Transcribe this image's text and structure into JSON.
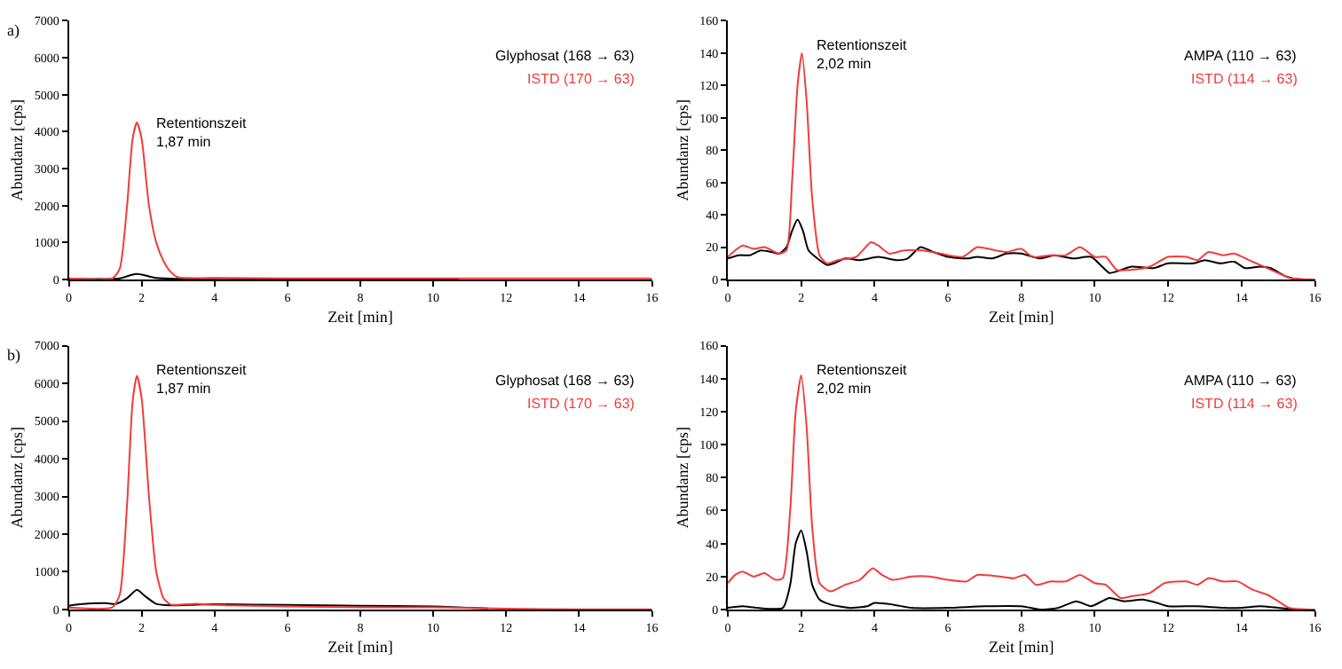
{
  "chart_data": [
    {
      "type": "line",
      "xlabel": "Zeit [min]",
      "ylabel": "Abundanz [cps]",
      "xlim": [
        0,
        16
      ],
      "xticks": [
        0,
        2,
        4,
        6,
        8,
        10,
        12,
        14,
        16
      ],
      "ylim": [
        0,
        7000
      ],
      "yticks": [
        0,
        1000,
        2000,
        3000,
        4000,
        5000,
        6000,
        7000
      ],
      "legend": "top right",
      "marker": "none",
      "annotations": [
        "Retentionszeit\n1,87 min",
        "a)"
      ],
      "series": [
        {
          "name": "Glyphosat (168 → 63)",
          "color": "#000000",
          "x": [
            0,
            1.4,
            1.7,
            1.87,
            2.1,
            2.4,
            3,
            4,
            6,
            8,
            10,
            10.7
          ],
          "values": [
            20,
            30,
            120,
            150,
            110,
            40,
            20,
            30,
            15,
            15,
            15,
            15
          ]
        },
        {
          "name": "ISTD (170 → 63)",
          "color": "#f03c3c",
          "x": [
            0,
            1.2,
            1.4,
            1.6,
            1.75,
            1.87,
            2.0,
            2.2,
            2.4,
            2.6,
            2.8,
            3.0,
            4,
            6,
            8,
            10,
            12,
            14,
            16
          ],
          "values": [
            30,
            30,
            300,
            2000,
            3800,
            4250,
            3800,
            2000,
            1000,
            500,
            200,
            60,
            40,
            30,
            30,
            30,
            30,
            30,
            30
          ]
        }
      ]
    },
    {
      "type": "line",
      "xlabel": "Zeit [min]",
      "ylabel": "Abundanz [cps]",
      "xlim": [
        0,
        16
      ],
      "xticks": [
        0,
        2,
        4,
        6,
        8,
        10,
        12,
        14,
        16
      ],
      "ylim": [
        0,
        160
      ],
      "yticks": [
        0,
        20,
        40,
        60,
        80,
        100,
        120,
        140,
        160
      ],
      "legend": "top right",
      "marker": "none",
      "annotations": [
        "Retentionszeit\n2,02 min"
      ],
      "series": [
        {
          "name": "AMPA (110 → 63)",
          "color": "#000000",
          "x": [
            0,
            0.3,
            0.6,
            0.9,
            1.2,
            1.4,
            1.6,
            1.75,
            1.9,
            2.05,
            2.2,
            2.5,
            2.7,
            2.9,
            3.2,
            3.6,
            4.1,
            4.6,
            4.9,
            5.25,
            5.6,
            6,
            6.5,
            6.8,
            7.2,
            7.6,
            8,
            8.5,
            8.9,
            9.4,
            9.9,
            10.2,
            10.4,
            10.6,
            11,
            11.6,
            12,
            12.7,
            13,
            13.4,
            13.8,
            14.1,
            14.5,
            14.8,
            15.2,
            15.6,
            16
          ],
          "values": [
            13,
            15,
            15,
            18,
            17,
            16,
            20,
            30,
            37,
            30,
            18,
            12,
            9,
            10,
            13,
            12,
            14,
            12,
            13,
            20,
            17,
            14,
            13,
            14,
            13,
            16,
            16,
            13,
            15,
            13,
            14,
            8,
            4,
            5,
            8,
            7,
            10,
            10,
            12,
            10,
            11,
            7,
            8,
            7,
            2,
            0,
            0
          ]
        },
        {
          "name": "ISTD (114 → 63)",
          "color": "#f03c3c",
          "x": [
            0,
            0.2,
            0.4,
            0.7,
            1,
            1.2,
            1.4,
            1.6,
            1.75,
            1.9,
            2.02,
            2.15,
            2.3,
            2.5,
            2.7,
            3.0,
            3.5,
            3.9,
            4.1,
            4.4,
            4.8,
            5.3,
            5.8,
            6.4,
            6.8,
            7.3,
            7.6,
            8,
            8.3,
            8.8,
            9.2,
            9.6,
            10,
            10.3,
            10.6,
            11,
            11.5,
            12,
            12.5,
            12.8,
            13.1,
            13.5,
            13.8,
            14.2,
            14.6,
            15,
            15.3,
            16
          ],
          "values": [
            14,
            18,
            21,
            19,
            20,
            18,
            16,
            18,
            60,
            120,
            140,
            110,
            50,
            15,
            10,
            12,
            14,
            23,
            21,
            16,
            18,
            18,
            16,
            14,
            20,
            18,
            17,
            19,
            14,
            15,
            15,
            20,
            14,
            14,
            6,
            6,
            8,
            14,
            14,
            12,
            17,
            15,
            16,
            12,
            8,
            4,
            1,
            0
          ]
        }
      ]
    },
    {
      "type": "line",
      "xlabel": "Zeit [min]",
      "ylabel": "Abundanz [cps]",
      "xlim": [
        0,
        16
      ],
      "xticks": [
        0,
        2,
        4,
        6,
        8,
        10,
        12,
        14,
        16
      ],
      "ylim": [
        0,
        7000
      ],
      "yticks": [
        0,
        1000,
        2000,
        3000,
        4000,
        5000,
        6000,
        7000
      ],
      "legend": "top right",
      "marker": "none",
      "annotations": [
        "Retentionszeit\n1,87 min",
        "b)"
      ],
      "series": [
        {
          "name": "Glyphosat (168 → 63)",
          "color": "#000000",
          "x": [
            0,
            0.3,
            1,
            1.3,
            1.6,
            1.87,
            2.1,
            2.4,
            2.8,
            3.5,
            4,
            6,
            8,
            10,
            11.5
          ],
          "values": [
            100,
            140,
            170,
            150,
            300,
            520,
            350,
            150,
            110,
            130,
            140,
            120,
            100,
            80,
            30
          ]
        },
        {
          "name": "ISTD (170 → 63)",
          "color": "#f03c3c",
          "x": [
            0,
            1.2,
            1.4,
            1.6,
            1.75,
            1.87,
            2.0,
            2.2,
            2.4,
            2.6,
            2.8,
            3.5,
            4,
            6,
            8,
            10,
            12,
            14,
            16
          ],
          "values": [
            50,
            60,
            400,
            2800,
            5500,
            6200,
            5600,
            3000,
            1000,
            300,
            130,
            150,
            120,
            80,
            60,
            60,
            20,
            5,
            5
          ]
        }
      ]
    },
    {
      "type": "line",
      "xlabel": "Zeit [min]",
      "ylabel": "Abundanz [cps]",
      "xlim": [
        0,
        16
      ],
      "xticks": [
        0,
        2,
        4,
        6,
        8,
        10,
        12,
        14,
        16
      ],
      "ylim": [
        0,
        160
      ],
      "yticks": [
        0,
        20,
        40,
        60,
        80,
        100,
        120,
        140,
        160
      ],
      "legend": "top right",
      "marker": "none",
      "annotations": [
        "Retentionszeit\n2,02 min"
      ],
      "series": [
        {
          "name": "AMPA (110 → 63)",
          "color": "#000000",
          "x": [
            0,
            0.4,
            0.8,
            1.5,
            1.7,
            1.85,
            2.0,
            2.15,
            2.3,
            2.5,
            2.8,
            3.3,
            3.8,
            4,
            4.5,
            5,
            6,
            7,
            8,
            8.5,
            9,
            9.5,
            9.9,
            10.4,
            10.8,
            11.3,
            11.7,
            12,
            12.8,
            13.5,
            14,
            14.5,
            15,
            15.5,
            16
          ],
          "values": [
            1,
            2,
            1,
            1,
            15,
            40,
            48,
            35,
            15,
            6,
            3,
            1,
            2,
            4,
            3,
            1,
            1,
            2,
            2,
            0,
            1,
            5,
            2,
            7,
            5,
            6,
            4,
            2,
            2,
            1,
            1,
            2,
            1,
            0,
            0
          ]
        },
        {
          "name": "ISTD (114 → 63)",
          "color": "#f03c3c",
          "x": [
            0,
            0.2,
            0.4,
            0.7,
            1,
            1.3,
            1.5,
            1.7,
            1.85,
            2.0,
            2.15,
            2.3,
            2.5,
            2.8,
            3.2,
            3.6,
            3.95,
            4.2,
            4.5,
            5,
            5.5,
            6,
            6.5,
            6.8,
            7.4,
            7.8,
            8.1,
            8.4,
            8.8,
            9.2,
            9.6,
            10,
            10.3,
            10.7,
            11,
            11.5,
            11.9,
            12.5,
            12.8,
            13.1,
            13.5,
            13.9,
            14.3,
            14.7,
            15,
            15.3,
            16
          ],
          "values": [
            16,
            21,
            23,
            20,
            22,
            18,
            19,
            60,
            120,
            142,
            110,
            50,
            16,
            11,
            15,
            18,
            25,
            21,
            18,
            20,
            20,
            18,
            17,
            21,
            20,
            19,
            21,
            15,
            17,
            17,
            21,
            16,
            15,
            7,
            8,
            10,
            16,
            17,
            15,
            19,
            17,
            17,
            12,
            9,
            5,
            1,
            0
          ]
        }
      ]
    }
  ]
}
